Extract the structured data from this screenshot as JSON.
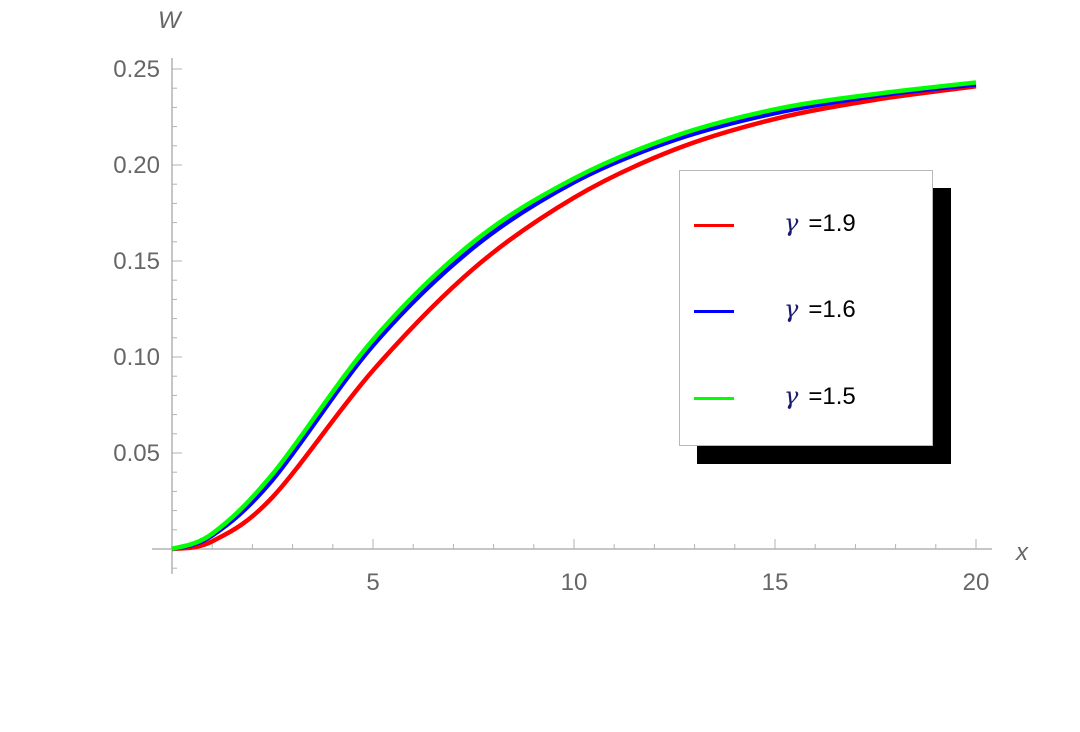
{
  "chart_data": {
    "type": "line",
    "title": "",
    "xlabel": "x",
    "ylabel": "W",
    "xlim": [
      0,
      20
    ],
    "ylim": [
      0,
      0.25
    ],
    "x_ticks": [
      5,
      10,
      15,
      20
    ],
    "x_tick_labels": [
      "5",
      "10",
      "15",
      "20"
    ],
    "y_ticks": [
      0.05,
      0.1,
      0.15,
      0.2,
      0.25
    ],
    "y_tick_labels": [
      "0.05",
      "0.10",
      "0.15",
      "0.20",
      "0.25"
    ],
    "grid": false,
    "legend_position": "right-center (inside, with drop shadow)",
    "x": [
      0,
      1,
      2.5,
      5,
      7.5,
      10,
      12.5,
      15,
      17.5,
      20
    ],
    "series": [
      {
        "name": "γ =1.9",
        "color": "#ff0000",
        "values": [
          0,
          0.004,
          0.027,
          0.093,
          0.146,
          0.183,
          0.208,
          0.224,
          0.234,
          0.241
        ]
      },
      {
        "name": "γ =1.6",
        "color": "#0000ff",
        "values": [
          0,
          0.007,
          0.036,
          0.106,
          0.157,
          0.191,
          0.213,
          0.227,
          0.236,
          0.242
        ]
      },
      {
        "name": "γ =1.5",
        "color": "#00ff00",
        "values": [
          0,
          0.008,
          0.039,
          0.109,
          0.16,
          0.193,
          0.215,
          0.229,
          0.237,
          0.243
        ]
      }
    ]
  },
  "legend": {
    "items": [
      {
        "symbol": "γ",
        "text": "=1.9",
        "color": "#ff0000"
      },
      {
        "symbol": "γ",
        "text": "=1.6",
        "color": "#0000ff"
      },
      {
        "symbol": "γ",
        "text": "=1.5",
        "color": "#00ff00"
      }
    ]
  }
}
